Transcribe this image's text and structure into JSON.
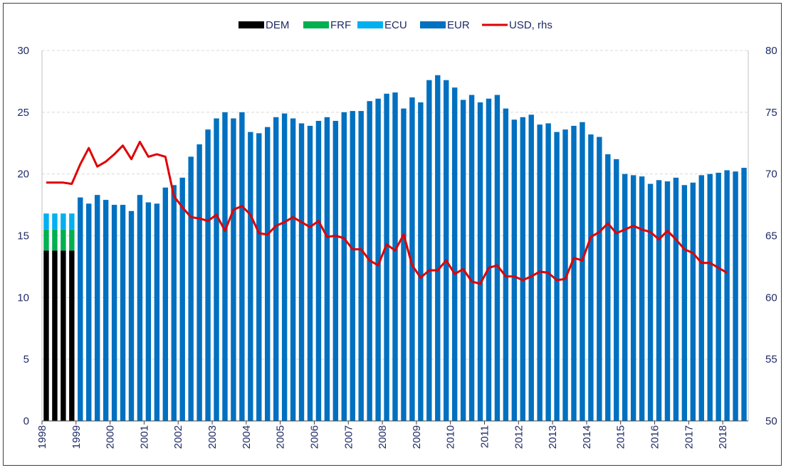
{
  "chart_data": {
    "type": "bar",
    "legend_position": "top",
    "grid": "horizontal, dashed, light",
    "left_axis": {
      "ylim": [
        0,
        30
      ],
      "ticks": [
        0,
        5,
        10,
        15,
        20,
        25,
        30
      ]
    },
    "right_axis": {
      "ylim": [
        50,
        80
      ],
      "ticks": [
        50,
        55,
        60,
        65,
        70,
        75,
        80
      ]
    },
    "x_start_year": 1998,
    "x_quarters_per_year": 4,
    "x_tick_labels": [
      "1998",
      "1999",
      "2000",
      "2001",
      "2002",
      "2003",
      "2004",
      "2005",
      "2006",
      "2007",
      "2008",
      "2009",
      "2010",
      "2011",
      "2012",
      "2013",
      "2014",
      "2015",
      "2016",
      "2017",
      "2018"
    ],
    "legend": [
      {
        "name": "DEM",
        "color": "#000000",
        "kind": "bar"
      },
      {
        "name": "FRF",
        "color": "#00b050",
        "kind": "bar"
      },
      {
        "name": "ECU",
        "color": "#00b0f0",
        "kind": "bar"
      },
      {
        "name": "EUR",
        "color": "#0070c0",
        "kind": "bar"
      },
      {
        "name": "USD, rhs",
        "color": "#e00000",
        "kind": "line"
      }
    ],
    "stack_1998": {
      "DEM": [
        13.8,
        13.8,
        13.8,
        13.8
      ],
      "FRF": [
        1.7,
        1.7,
        1.7,
        1.7
      ],
      "ECU": [
        1.3,
        1.3,
        1.3,
        1.3
      ]
    },
    "eur": [
      18.1,
      17.6,
      18.3,
      17.9,
      17.5,
      17.5,
      17.0,
      18.3,
      17.7,
      17.6,
      18.9,
      19.1,
      19.7,
      21.4,
      22.4,
      23.6,
      24.5,
      25.0,
      24.5,
      25.0,
      23.4,
      23.3,
      23.8,
      24.6,
      24.9,
      24.5,
      24.1,
      23.9,
      24.3,
      24.6,
      24.3,
      25.0,
      25.1,
      25.1,
      25.9,
      26.1,
      26.5,
      26.6,
      25.3,
      26.2,
      25.8,
      27.6,
      28.0,
      27.6,
      27.0,
      26.0,
      26.4,
      25.8,
      26.1,
      26.4,
      25.3,
      24.4,
      24.6,
      24.8,
      24.0,
      24.1,
      23.4,
      23.6,
      23.9,
      24.2,
      23.2,
      23.0,
      21.6,
      21.2,
      20.0,
      19.9,
      19.8,
      19.2,
      19.5,
      19.4,
      19.7,
      19.1,
      19.3,
      19.9,
      20.0,
      20.1,
      20.3,
      20.2,
      20.5
    ],
    "usd": [
      69.3,
      69.3,
      69.3,
      69.2,
      70.8,
      72.1,
      70.6,
      71.0,
      71.6,
      72.3,
      71.2,
      72.6,
      71.4,
      71.6,
      71.4,
      68.2,
      67.3,
      66.5,
      66.4,
      66.2,
      66.7,
      65.4,
      67.1,
      67.4,
      66.7,
      65.2,
      65.1,
      65.8,
      66.1,
      66.5,
      66.1,
      65.7,
      66.2,
      64.9,
      65.0,
      64.8,
      63.9,
      63.9,
      63.0,
      62.6,
      64.3,
      63.8,
      65.1,
      62.6,
      61.6,
      62.2,
      62.2,
      63.0,
      61.9,
      62.3,
      61.3,
      61.1,
      62.4,
      62.6,
      61.7,
      61.7,
      61.4,
      61.7,
      62.1,
      62.0,
      61.4,
      61.5,
      63.2,
      63.0,
      64.9,
      65.3,
      66.0,
      65.2,
      65.5,
      65.8,
      65.5,
      65.3,
      64.7,
      65.4,
      64.7,
      63.9,
      63.6,
      62.8,
      62.8,
      62.4,
      62.0
    ]
  }
}
